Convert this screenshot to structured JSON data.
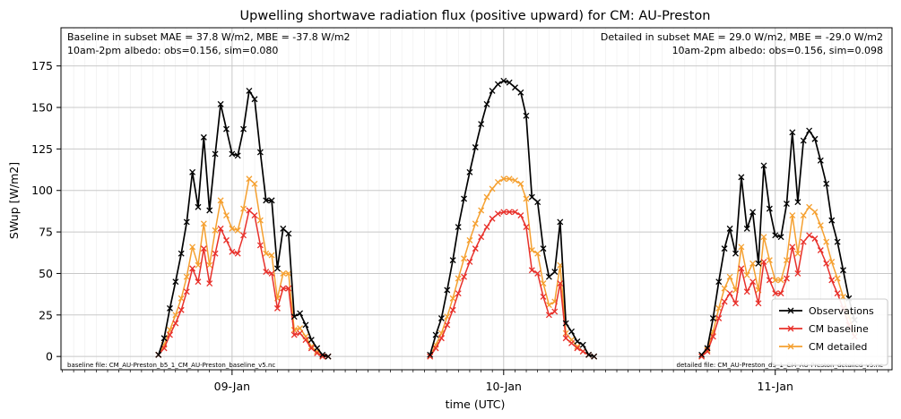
{
  "chart_data": {
    "type": "line",
    "title": "Upwelling shortwave radiation flux (positive upward) for CM: AU-Preston",
    "xlabel": "time (UTC)",
    "ylabel": "SWup [W/m2]",
    "x_tick_labels": [
      "09-Jan",
      "10-Jan",
      "11-Jan"
    ],
    "x_range_days": [
      8.37,
      11.43
    ],
    "ylim": [
      -8,
      198
    ],
    "y_ticks": [
      0,
      25,
      50,
      75,
      100,
      125,
      150,
      175
    ],
    "grid": true,
    "legend_position": "lower right",
    "annotations": {
      "top_left": [
        "Baseline in subset MAE = 37.8 W/m2, MBE = -37.8 W/m2",
        "10am-2pm albedo: obs=0.156, sim=0.080"
      ],
      "top_right": [
        "Detailed in subset MAE = 29.0 W/m2, MBE = -29.0 W/m2",
        "10am-2pm albedo: obs=0.156, sim=0.098"
      ],
      "bottom_left": "baseline file: CM_AU-Preston_b5_1_CM_AU-Preston_baseline_v5.nc",
      "bottom_right": "detailed file: CM_AU-Preston_d5_1_CM_AU-Preston_detailed_v5.nc"
    },
    "series": [
      {
        "name": "Observations",
        "color": "#000000",
        "segments": [
          {
            "x": [
              8.729,
              8.75,
              8.771,
              8.792,
              8.813,
              8.833,
              8.854,
              8.875,
              8.896,
              8.917,
              8.938,
              8.958,
              8.979,
              9.0,
              9.021,
              9.042,
              9.063,
              9.083,
              9.104,
              9.125,
              9.146,
              9.167,
              9.188,
              9.208,
              9.229,
              9.25,
              9.271,
              9.292,
              9.313,
              9.333,
              9.354,
              9.375,
              9.396,
              9.417,
              9.438,
              9.458
            ],
            "y": [
              1,
              11,
              29,
              45,
              62,
              81,
              111,
              90,
              132,
              88,
              122,
              152,
              137,
              122,
              121,
              137,
              160,
              155,
              123,
              94,
              94,
              53,
              77,
              74,
              24,
              26,
              19,
              10,
              5,
              1,
              0,
              null,
              null,
              null,
              null,
              null
            ]
          },
          {
            "x": [
              9.729,
              9.75,
              9.771,
              9.792,
              9.813,
              9.833,
              9.854,
              9.875,
              9.896,
              9.917,
              9.938,
              9.958,
              9.979,
              10.0,
              10.021,
              10.042,
              10.063,
              10.083,
              10.104,
              10.125,
              10.146,
              10.167,
              10.188,
              10.208,
              10.229,
              10.25,
              10.271,
              10.292,
              10.313,
              10.333,
              10.354,
              10.375,
              10.396,
              10.417,
              10.438
            ],
            "y": [
              1,
              13,
              23,
              40,
              58,
              78,
              95,
              111,
              126,
              140,
              152,
              160,
              164,
              166,
              165,
              162,
              159,
              145,
              96,
              93,
              65,
              48,
              51,
              81,
              20,
              15,
              9,
              7,
              1,
              0,
              null,
              null,
              null,
              null,
              null
            ]
          },
          {
            "x": [
              10.729,
              10.75,
              10.771,
              10.792,
              10.813,
              10.833,
              10.854,
              10.875,
              10.896,
              10.917,
              10.938,
              10.958,
              10.979,
              11.0,
              11.021,
              11.042,
              11.063,
              11.083,
              11.104,
              11.125,
              11.146,
              11.167,
              11.188,
              11.208,
              11.229,
              11.25,
              11.271,
              11.292,
              11.313,
              11.333,
              11.354,
              11.375,
              11.396,
              11.417
            ],
            "y": [
              1,
              5,
              23,
              45,
              65,
              77,
              62,
              108,
              77,
              87,
              56,
              115,
              89,
              73,
              72,
              92,
              135,
              93,
              130,
              136,
              131,
              118,
              104,
              82,
              69,
              52,
              35,
              22,
              null,
              null,
              null,
              null,
              null,
              null
            ]
          }
        ]
      },
      {
        "name": "CM baseline",
        "color": "#e8302a",
        "segments": [
          {
            "x": [
              8.729,
              8.75,
              8.771,
              8.792,
              8.813,
              8.833,
              8.854,
              8.875,
              8.896,
              8.917,
              8.938,
              8.958,
              8.979,
              9.0,
              9.021,
              9.042,
              9.063,
              9.083,
              9.104,
              9.125,
              9.146,
              9.167,
              9.188,
              9.208,
              9.229,
              9.25,
              9.271,
              9.292,
              9.313,
              9.333,
              9.354
            ],
            "y": [
              1,
              5,
              13,
              20,
              28,
              39,
              53,
              45,
              65,
              44,
              62,
              77,
              70,
              63,
              62,
              73,
              88,
              85,
              67,
              51,
              50,
              29,
              41,
              41,
              13,
              14,
              10,
              5,
              2,
              0,
              0
            ]
          },
          {
            "x": [
              9.729,
              9.75,
              9.771,
              9.792,
              9.813,
              9.833,
              9.854,
              9.875,
              9.896,
              9.917,
              9.938,
              9.958,
              9.979,
              10.0,
              10.021,
              10.042,
              10.063,
              10.083,
              10.104,
              10.125,
              10.146,
              10.167,
              10.188,
              10.208,
              10.229,
              10.25,
              10.271,
              10.292,
              10.313,
              10.333
            ],
            "y": [
              0,
              5,
              11,
              19,
              28,
              38,
              48,
              57,
              65,
              72,
              78,
              83,
              86,
              87,
              87,
              87,
              85,
              78,
              52,
              50,
              36,
              25,
              27,
              44,
              11,
              8,
              5,
              3,
              1,
              0
            ]
          },
          {
            "x": [
              10.729,
              10.75,
              10.771,
              10.792,
              10.813,
              10.833,
              10.854,
              10.875,
              10.896,
              10.917,
              10.938,
              10.958,
              10.979,
              11.0,
              11.021,
              11.042,
              11.063,
              11.083,
              11.104,
              11.125,
              11.146,
              11.167,
              11.188,
              11.208,
              11.229,
              11.25,
              11.271,
              11.292
            ],
            "y": [
              0,
              3,
              12,
              23,
              33,
              38,
              32,
              53,
              39,
              45,
              32,
              57,
              46,
              38,
              38,
              47,
              66,
              50,
              69,
              73,
              71,
              64,
              56,
              46,
              38,
              29,
              19,
              12
            ]
          }
        ]
      },
      {
        "name": "CM detailed",
        "color": "#f5a030",
        "segments": [
          {
            "x": [
              8.729,
              8.75,
              8.771,
              8.792,
              8.813,
              8.833,
              8.854,
              8.875,
              8.896,
              8.917,
              8.938,
              8.958,
              8.979,
              9.0,
              9.021,
              9.042,
              9.063,
              9.083,
              9.104,
              9.125,
              9.146,
              9.167,
              9.188,
              9.208,
              9.229,
              9.25,
              9.271,
              9.292,
              9.313,
              9.333,
              9.354
            ],
            "y": [
              1,
              7,
              16,
              25,
              35,
              48,
              66,
              55,
              80,
              55,
              76,
              94,
              85,
              77,
              76,
              89,
              107,
              104,
              82,
              62,
              61,
              35,
              50,
              50,
              16,
              17,
              12,
              6,
              3,
              0,
              0
            ]
          },
          {
            "x": [
              9.729,
              9.75,
              9.771,
              9.792,
              9.813,
              9.833,
              9.854,
              9.875,
              9.896,
              9.917,
              9.938,
              9.958,
              9.979,
              10.0,
              10.021,
              10.042,
              10.063,
              10.083,
              10.104,
              10.125,
              10.146,
              10.167,
              10.188,
              10.208,
              10.229,
              10.25,
              10.271,
              10.292,
              10.313,
              10.333
            ],
            "y": [
              0,
              7,
              14,
              24,
              35,
              47,
              59,
              70,
              80,
              88,
              96,
              101,
              105,
              107,
              107,
              106,
              104,
              95,
              64,
              62,
              44,
              31,
              33,
              55,
              14,
              10,
              6,
              3,
              1,
              0
            ]
          },
          {
            "x": [
              10.729,
              10.75,
              10.771,
              10.792,
              10.813,
              10.833,
              10.854,
              10.875,
              10.896,
              10.917,
              10.938,
              10.958,
              10.979,
              11.0,
              11.021,
              11.042,
              11.063,
              11.083,
              11.104,
              11.125,
              11.146,
              11.167,
              11.188,
              11.208,
              11.229,
              11.25,
              11.271,
              11.292
            ],
            "y": [
              0,
              4,
              15,
              29,
              41,
              48,
              40,
              66,
              49,
              56,
              40,
              72,
              58,
              46,
              46,
              58,
              85,
              62,
              85,
              90,
              87,
              79,
              69,
              57,
              47,
              36,
              24,
              15
            ]
          }
        ]
      }
    ]
  }
}
